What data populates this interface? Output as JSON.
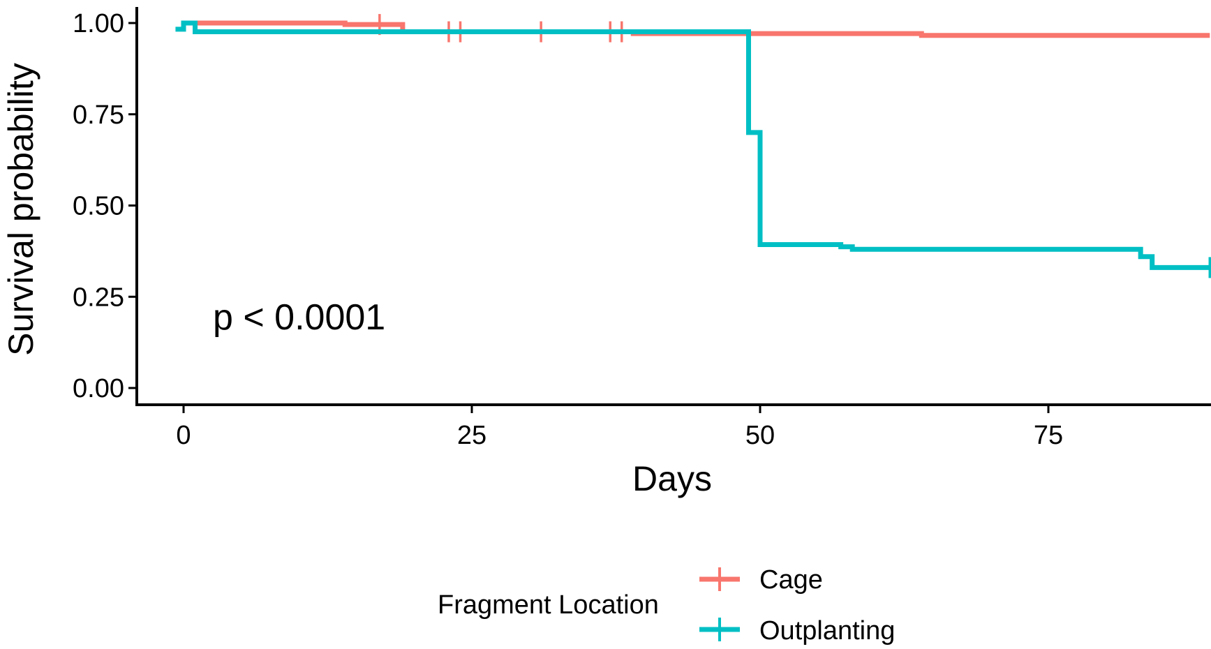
{
  "chart_data": {
    "type": "line",
    "subtype": "kaplan-meier step",
    "title": "",
    "xlabel": "Days",
    "ylabel": "Survival probability",
    "xlim": [
      -2,
      89
    ],
    "ylim": [
      0,
      1
    ],
    "x_ticks": [
      0,
      25,
      50,
      75
    ],
    "x_tick_labels": [
      "0",
      "25",
      "50",
      "75"
    ],
    "y_ticks": [
      0,
      0.25,
      0.5,
      0.75,
      1.0
    ],
    "y_tick_labels": [
      "0.00",
      "0.25",
      "0.50",
      "0.75",
      "1.00"
    ],
    "grid": false,
    "annotation": {
      "text": "p < 0.0001",
      "x": 2.5,
      "y": 0.19
    },
    "legend": {
      "title": "Fragment Location",
      "position": "bottom"
    },
    "series": [
      {
        "name": "Cage",
        "color": "#F8766D",
        "steps": [
          [
            0,
            1.0
          ],
          [
            14,
            0.996
          ],
          [
            19,
            0.976
          ],
          [
            39,
            0.971
          ],
          [
            64,
            0.966
          ],
          [
            89,
            0.966
          ]
        ],
        "censor_x": [
          17,
          23,
          24,
          31,
          37,
          38
        ]
      },
      {
        "name": "Outplanting",
        "color": "#00BFC4",
        "steps": [
          [
            -0.7,
            0.983
          ],
          [
            0,
            1.0
          ],
          [
            1,
            0.976
          ],
          [
            49,
            0.7
          ],
          [
            50,
            0.393
          ],
          [
            57,
            0.387
          ],
          [
            58,
            0.38
          ],
          [
            83,
            0.36
          ],
          [
            84,
            0.33
          ],
          [
            89,
            0.33
          ]
        ],
        "censor_x": [
          89
        ]
      }
    ]
  }
}
